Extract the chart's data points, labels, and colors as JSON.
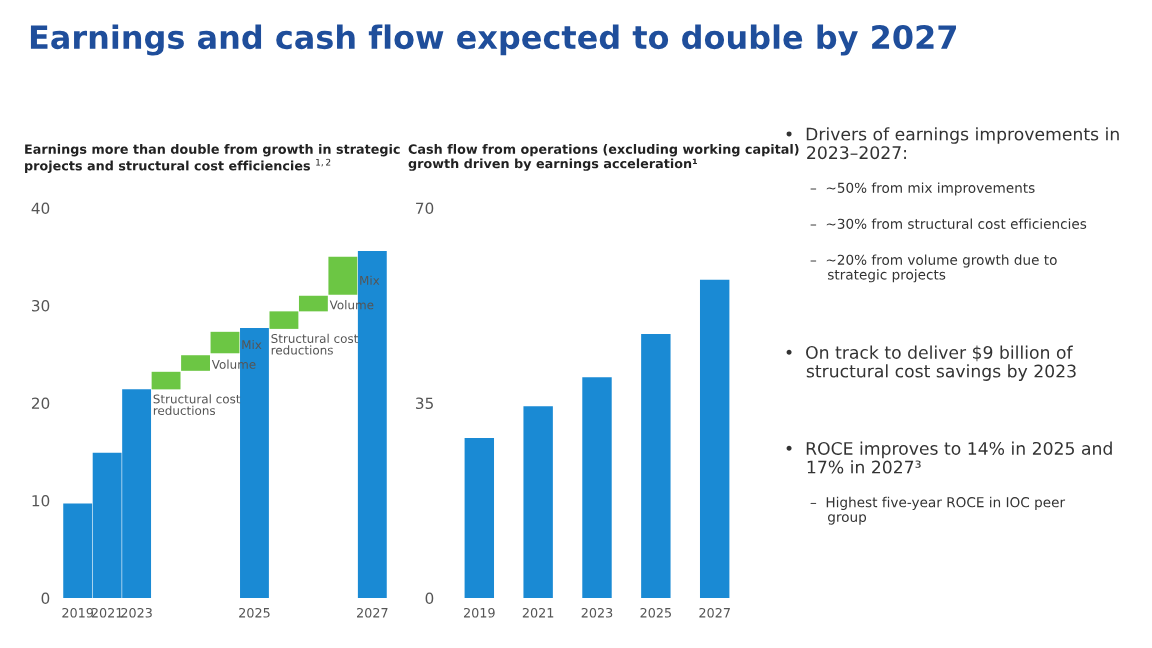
{
  "chart_data": [
    {
      "type": "bar",
      "title": "Earnings and cash flow expected to double by 2027",
      "subtitle": "Earnings more than double from growth in strategic\nprojects and structural cost efficiencies $^{1,2}$",
      "categories": [
        "2019",
        "2021",
        "2023",
        null,
        null,
        null,
        "2025",
        null,
        null,
        null,
        "2027"
      ],
      "values": [
        9.7,
        14.9,
        21.4,
        1.8,
        1.6,
        2.2,
        27.7,
        1.8,
        1.6,
        3.9,
        35.6
      ],
      "base": [
        0,
        0,
        0,
        21.4,
        23.3,
        25.1,
        0,
        27.6,
        29.4,
        31.1,
        0
      ],
      "colors": [
        "#1a8ad4",
        "#1a8ad4",
        "#1a8ad4",
        "#6cc644",
        "#6cc644",
        "#6cc644",
        "#1a8ad4",
        "#6cc644",
        "#6cc644",
        "#6cc644",
        "#1a8ad4"
      ],
      "annotations": [
        "Structural cost\nreductions",
        "Volume",
        "Mix",
        "Structural cost\nreductions",
        "Volume",
        "Mix"
      ],
      "ylim": [
        0,
        40
      ],
      "yticks": [
        0,
        10,
        20,
        30,
        40
      ],
      "grid": false
    },
    {
      "type": "bar",
      "subtitle": "Cash flow from operations (excluding working capital)\ngrowth driven by earnings acceleration¹",
      "categories": [
        "2019",
        "2021",
        "2023",
        "2025",
        "2027"
      ],
      "values": [
        28.7,
        34.4,
        39.6,
        47.4,
        57.1
      ],
      "color": "#1a8ad4",
      "ylim": [
        0,
        70
      ],
      "yticks": [
        0,
        35,
        70
      ],
      "grid": false
    },
    {
      "type": "other",
      "annotations": [
        "•  Drivers of earnings improvements in\n    2023–2027:",
        "      –  ~50% from mix improvements",
        "      –  ~30% from structural cost efficiencies",
        "      –  ~20% from volume growth due to\n          strategic projects",
        "•  On track to deliver $9 billion of\n    structural cost savings by 2023",
        "•  ROCE improves to 14% in 2025 and\n    17% in 2027³",
        "      –  Highest five-year ROCE in IOC peer\n          group"
      ]
    }
  ]
}
